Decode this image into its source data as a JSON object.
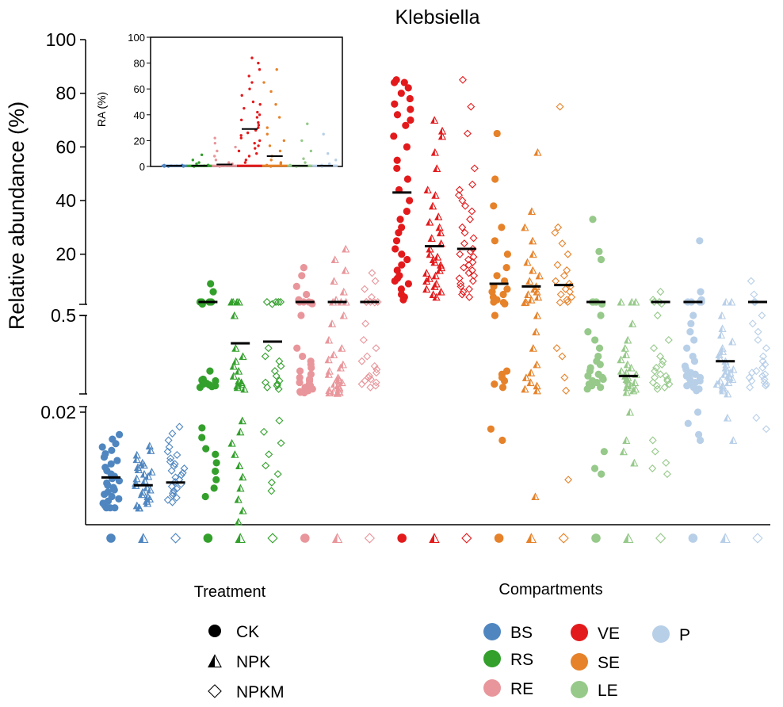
{
  "chart_data": {
    "type": "scatter",
    "title": "Klebsiella",
    "ylabel": "Relative abundance (%)",
    "y_axis": {
      "broken": true,
      "segments": [
        {
          "range": [
            0,
            0.02
          ],
          "ticks": [
            "0.02"
          ]
        },
        {
          "range": [
            0.02,
            0.5
          ],
          "ticks": [
            "0.5"
          ]
        },
        {
          "range": [
            0.5,
            100
          ],
          "ticks": [
            "20",
            "40",
            "60",
            "80",
            "100"
          ]
        }
      ]
    },
    "groups": [
      {
        "compartment": "BS",
        "treatment": "CK",
        "color": "#4f86c0",
        "median": 0.0084,
        "values": [
          0.003,
          0.003,
          0.003,
          0.0034,
          0.0038,
          0.0042,
          0.0046,
          0.005,
          0.0054,
          0.0058,
          0.0062,
          0.0066,
          0.007,
          0.0074,
          0.0078,
          0.0082,
          0.0086,
          0.009,
          0.0096,
          0.0102,
          0.0108,
          0.0114,
          0.012,
          0.0126,
          0.0132,
          0.0138,
          0.0144,
          0.0152,
          0.016
        ]
      },
      {
        "compartment": "BS",
        "treatment": "NPK",
        "color": "#4f86c0",
        "median": 0.007,
        "values": [
          0.003,
          0.003,
          0.0034,
          0.0038,
          0.0042,
          0.0046,
          0.005,
          0.0054,
          0.0058,
          0.0062,
          0.0066,
          0.007,
          0.0074,
          0.0078,
          0.0082,
          0.0086,
          0.009,
          0.0094,
          0.0098,
          0.0102,
          0.0106,
          0.011,
          0.0116,
          0.0124,
          0.0132,
          0.014
        ]
      },
      {
        "compartment": "BS",
        "treatment": "NPKM",
        "color": "#4f86c0",
        "median": 0.0075,
        "values": [
          0.004,
          0.0044,
          0.0048,
          0.0052,
          0.0056,
          0.006,
          0.0064,
          0.0068,
          0.0072,
          0.0076,
          0.008,
          0.0084,
          0.0088,
          0.0092,
          0.0096,
          0.01,
          0.0104,
          0.0108,
          0.0112,
          0.0118,
          0.0124,
          0.013,
          0.0138,
          0.015,
          0.0162,
          0.0174
        ]
      },
      {
        "compartment": "RS",
        "treatment": "CK",
        "color": "#33a02c",
        "median": 1.0,
        "values": [
          0.005,
          0.0065,
          0.008,
          0.0095,
          0.011,
          0.0125,
          0.0135,
          0.0155,
          0.0172,
          0.06,
          0.065,
          0.07,
          0.075,
          0.08,
          0.085,
          0.09,
          0.095,
          0.1,
          0.105,
          0.11,
          0.16,
          0.7,
          0.8,
          1.0,
          1.2,
          1.3,
          1.4,
          6.0,
          9.0
        ]
      },
      {
        "compartment": "RS",
        "treatment": "NPK",
        "color": "#33a02c",
        "median": 0.33,
        "values": [
          0.0005,
          0.0025,
          0.0045,
          0.0065,
          0.0085,
          0.0105,
          0.0125,
          0.0145,
          0.0165,
          0.0185,
          0.05,
          0.06,
          0.07,
          0.08,
          0.09,
          0.1,
          0.13,
          0.16,
          0.19,
          0.22,
          0.25,
          0.3,
          0.5,
          0.7,
          0.9,
          1.1,
          1.3
        ]
      },
      {
        "compartment": "RS",
        "treatment": "NPKM",
        "color": "#33a02c",
        "median": 0.34,
        "values": [
          0.006,
          0.0075,
          0.009,
          0.0105,
          0.0125,
          0.0145,
          0.0165,
          0.0185,
          0.05,
          0.06,
          0.07,
          0.08,
          0.09,
          0.1,
          0.13,
          0.16,
          0.19,
          0.22,
          0.25,
          0.3,
          0.6,
          0.8,
          1.0,
          1.2,
          1.4
        ]
      },
      {
        "compartment": "RE",
        "treatment": "CK",
        "color": "#e8969b",
        "median": 0.9,
        "values": [
          0.027,
          0.03,
          0.034,
          0.04,
          0.05,
          0.06,
          0.07,
          0.08,
          0.09,
          0.1,
          0.11,
          0.12,
          0.14,
          0.16,
          0.18,
          0.2,
          0.22,
          0.25,
          0.3,
          0.5,
          0.7,
          0.9,
          1.2,
          1.5,
          2.0,
          3.0,
          5.0,
          8.0,
          12.0,
          15.0
        ]
      },
      {
        "compartment": "RE",
        "treatment": "NPK",
        "color": "#e8969b",
        "median": 0.9,
        "values": [
          0.024,
          0.027,
          0.03,
          0.034,
          0.038,
          0.042,
          0.05,
          0.06,
          0.07,
          0.08,
          0.09,
          0.1,
          0.11,
          0.12,
          0.14,
          0.16,
          0.18,
          0.2,
          0.23,
          0.26,
          0.3,
          0.35,
          0.45,
          0.5,
          0.8,
          1.0,
          1.2,
          3.0,
          6.0,
          10.0,
          14.0,
          18.0,
          22.0
        ]
      },
      {
        "compartment": "RE",
        "treatment": "NPKM",
        "color": "#e8969b",
        "median": 0.8,
        "values": [
          0.06,
          0.07,
          0.08,
          0.09,
          0.1,
          0.11,
          0.12,
          0.13,
          0.15,
          0.17,
          0.19,
          0.22,
          0.25,
          0.3,
          0.35,
          0.45,
          0.6,
          0.8,
          1.0,
          1.2,
          2.0,
          4.0,
          7.0,
          10.0,
          13.0
        ]
      },
      {
        "compartment": "VE",
        "treatment": "CK",
        "color": "#e31a1c",
        "median": 43,
        "values": [
          3,
          4,
          5,
          7,
          9,
          10,
          11,
          12,
          14,
          16,
          18,
          20,
          22,
          25,
          28,
          30,
          33,
          36,
          40,
          44,
          48,
          52,
          55,
          60,
          64,
          68,
          70,
          72,
          74,
          76,
          78,
          80,
          82,
          84,
          84,
          85
        ]
      },
      {
        "compartment": "VE",
        "treatment": "NPK",
        "color": "#e31a1c",
        "median": 23,
        "values": [
          4,
          5,
          6,
          7,
          8,
          9,
          10,
          11,
          12,
          13,
          14,
          15,
          16,
          17,
          18,
          19,
          20,
          22,
          24,
          26,
          28,
          30,
          32,
          34,
          38,
          42,
          44,
          52,
          58,
          64,
          66,
          70
        ]
      },
      {
        "compartment": "VE",
        "treatment": "NPKM",
        "color": "#e31a1c",
        "median": 22,
        "values": [
          4,
          5,
          6,
          7,
          8,
          9,
          10,
          11,
          12,
          13,
          14,
          15,
          16,
          17,
          18,
          19,
          20,
          21,
          22,
          24,
          26,
          28,
          30,
          33,
          36,
          38,
          40,
          42,
          44,
          46,
          52,
          65,
          75,
          85
        ]
      },
      {
        "compartment": "SE",
        "treatment": "CK",
        "color": "#e6822a",
        "median": 9,
        "values": [
          0.015,
          0.017,
          0.06,
          0.08,
          0.1,
          0.12,
          0.14,
          0.16,
          0.5,
          1.0,
          1.5,
          2.0,
          3.0,
          4.0,
          5.0,
          6.0,
          7.0,
          8.0,
          10.0,
          12.0,
          15.0,
          20.0,
          25.0,
          30.0,
          38.0,
          48.0,
          65.0
        ]
      },
      {
        "compartment": "SE",
        "treatment": "NPK",
        "color": "#e6822a",
        "median": 8,
        "values": [
          0.005,
          0.04,
          0.05,
          0.07,
          0.09,
          0.12,
          0.15,
          0.2,
          0.3,
          0.4,
          0.5,
          1.0,
          2.0,
          3.0,
          4.0,
          5.0,
          6.0,
          7.0,
          8.0,
          10.0,
          12.0,
          14.0,
          17.0,
          20.0,
          25.0,
          30.0,
          36.0,
          58.0
        ]
      },
      {
        "compartment": "SE",
        "treatment": "NPKM",
        "color": "#e6822a",
        "median": 8.5,
        "values": [
          0.008,
          0.04,
          0.12,
          0.25,
          0.3,
          1.0,
          2.0,
          3.0,
          4.0,
          5.0,
          6.0,
          7.0,
          8.0,
          9.0,
          10.0,
          12.0,
          14.0,
          16.0,
          20.0,
          24.0,
          28.0,
          30.0,
          75.0
        ]
      },
      {
        "compartment": "LE",
        "treatment": "CK",
        "color": "#96c98a",
        "median": 1.0,
        "values": [
          0.009,
          0.01,
          0.013,
          0.05,
          0.06,
          0.07,
          0.08,
          0.09,
          0.1,
          0.11,
          0.12,
          0.13,
          0.14,
          0.16,
          0.18,
          0.2,
          0.22,
          0.25,
          0.3,
          0.35,
          0.4,
          0.5,
          0.8,
          1.0,
          1.2,
          1.4,
          18.0,
          21.0,
          33.0
        ]
      },
      {
        "compartment": "LE",
        "treatment": "NPK",
        "color": "#96c98a",
        "median": 0.13,
        "values": [
          0.011,
          0.013,
          0.015,
          0.02,
          0.03,
          0.04,
          0.05,
          0.06,
          0.07,
          0.08,
          0.09,
          0.1,
          0.11,
          0.12,
          0.13,
          0.14,
          0.15,
          0.16,
          0.18,
          0.2,
          0.23,
          0.26,
          0.3,
          0.35,
          0.45,
          0.6,
          0.8,
          1.0
        ]
      },
      {
        "compartment": "LE",
        "treatment": "NPKM",
        "color": "#96c98a",
        "median": 0.7,
        "values": [
          0.009,
          0.01,
          0.011,
          0.013,
          0.015,
          0.05,
          0.06,
          0.07,
          0.08,
          0.09,
          0.1,
          0.11,
          0.12,
          0.13,
          0.14,
          0.16,
          0.18,
          0.2,
          0.22,
          0.25,
          0.3,
          0.35,
          0.5,
          0.8,
          1.0,
          1.5,
          3.0,
          6.0
        ]
      },
      {
        "compartment": "P",
        "treatment": "CK",
        "color": "#b8cfe8",
        "median": 1.0,
        "values": [
          0.015,
          0.016,
          0.018,
          0.02,
          0.04,
          0.05,
          0.06,
          0.07,
          0.08,
          0.09,
          0.1,
          0.11,
          0.12,
          0.13,
          0.14,
          0.15,
          0.17,
          0.19,
          0.22,
          0.25,
          0.3,
          0.35,
          0.4,
          0.45,
          0.5,
          0.7,
          0.9,
          1.0,
          1.2,
          3.0,
          6.0,
          25.0
        ]
      },
      {
        "compartment": "P",
        "treatment": "NPK",
        "color": "#b8cfe8",
        "median": 0.22,
        "values": [
          0.015,
          0.019,
          0.021,
          0.04,
          0.05,
          0.06,
          0.07,
          0.08,
          0.09,
          0.1,
          0.11,
          0.12,
          0.13,
          0.14,
          0.15,
          0.16,
          0.17,
          0.18,
          0.2,
          0.22,
          0.24,
          0.26,
          0.28,
          0.3,
          0.34,
          0.38,
          0.42,
          0.5,
          0.8,
          1.0
        ]
      },
      {
        "compartment": "P",
        "treatment": "NPKM",
        "color": "#b8cfe8",
        "median": 0.8,
        "values": [
          0.017,
          0.019,
          0.06,
          0.07,
          0.08,
          0.09,
          0.1,
          0.11,
          0.12,
          0.13,
          0.14,
          0.15,
          0.16,
          0.18,
          0.2,
          0.22,
          0.25,
          0.3,
          0.35,
          0.4,
          0.45,
          0.5,
          0.8,
          1.0,
          5.0,
          10.0
        ]
      }
    ],
    "inset": {
      "ylabel": "RA (%)",
      "ylim": [
        0,
        100
      ],
      "yticks": [
        "0",
        "20",
        "40",
        "60",
        "80",
        "100"
      ],
      "groups": [
        {
          "compartment": "BS",
          "color": "#4f86c0",
          "median": 0.5,
          "values": [
            0,
            0,
            0.5,
            0.5,
            1,
            1,
            0.5,
            0
          ]
        },
        {
          "compartment": "RS",
          "color": "#33a02c",
          "median": 0.5,
          "values": [
            0,
            0.5,
            1,
            1,
            2,
            3,
            5,
            9
          ]
        },
        {
          "compartment": "RE",
          "color": "#e8969b",
          "median": 1.5,
          "values": [
            0,
            0.5,
            1,
            2,
            3,
            5,
            8,
            12,
            15,
            18,
            22
          ]
        },
        {
          "compartment": "VE",
          "color": "#e31a1c",
          "median": 29,
          "values": [
            3,
            5,
            8,
            10,
            12,
            14,
            16,
            18,
            20,
            22,
            24,
            26,
            28,
            30,
            32,
            34,
            36,
            38,
            40,
            42,
            45,
            48,
            50,
            55,
            60,
            65,
            70,
            75,
            80,
            84
          ]
        },
        {
          "compartment": "SE",
          "color": "#e6822a",
          "median": 8,
          "values": [
            0,
            1,
            2,
            3,
            5,
            8,
            12,
            16,
            20,
            25,
            30,
            38,
            48,
            58,
            65,
            75
          ]
        },
        {
          "compartment": "LE",
          "color": "#96c98a",
          "median": 0.5,
          "values": [
            0,
            0.5,
            1,
            3,
            6,
            12,
            20,
            33
          ]
        },
        {
          "compartment": "P",
          "color": "#b8cfe8",
          "median": 0.5,
          "values": [
            0,
            0.5,
            1,
            2,
            5,
            10,
            25
          ]
        }
      ]
    },
    "legend": {
      "treatment_title": "Treatment",
      "treatments": [
        {
          "label": "CK",
          "shape": "circle"
        },
        {
          "label": "NPK",
          "shape": "triangle-half"
        },
        {
          "label": "NPKM",
          "shape": "diamond-open"
        }
      ],
      "compartment_title": "Compartments",
      "compartments": [
        {
          "label": "BS",
          "color": "#4f86c0"
        },
        {
          "label": "RS",
          "color": "#33a02c"
        },
        {
          "label": "RE",
          "color": "#e8969b"
        },
        {
          "label": "VE",
          "color": "#e31a1c"
        },
        {
          "label": "SE",
          "color": "#e6822a"
        },
        {
          "label": "LE",
          "color": "#96c98a"
        },
        {
          "label": "P",
          "color": "#b8cfe8"
        }
      ]
    }
  }
}
